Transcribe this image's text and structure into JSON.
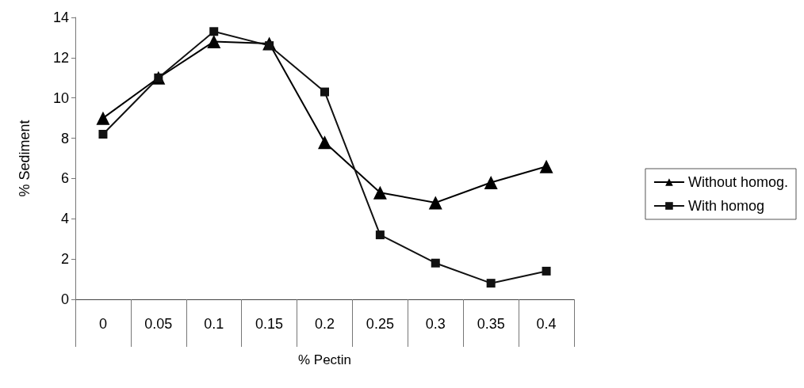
{
  "chart_data": {
    "type": "line",
    "xlabel": "% Pectin",
    "ylabel": "% Sediment",
    "categories": [
      "0",
      "0.05",
      "0.1",
      "0.15",
      "0.2",
      "0.25",
      "0.3",
      "0.35",
      "0.4"
    ],
    "series": [
      {
        "name": "Without homog.",
        "color": "#000000",
        "marker": "triangle",
        "values": [
          9.0,
          11.0,
          12.8,
          12.7,
          7.8,
          5.3,
          4.8,
          5.8,
          6.6
        ]
      },
      {
        "name": "With homog",
        "color": "#111111",
        "marker": "square",
        "values": [
          8.2,
          11.0,
          13.3,
          12.6,
          10.3,
          3.2,
          1.8,
          0.8,
          1.4
        ]
      }
    ],
    "ylim": [
      0,
      14
    ],
    "yticks": [
      0,
      2,
      4,
      6,
      8,
      10,
      12,
      14
    ],
    "grid": false,
    "legend": "right",
    "line_style": "solid"
  }
}
